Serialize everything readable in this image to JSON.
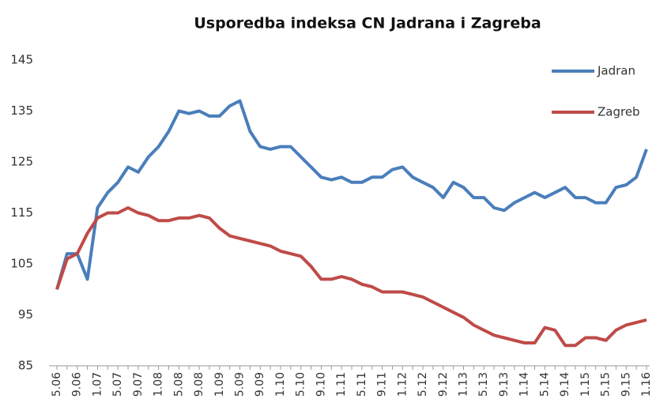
{
  "chart_data": {
    "type": "line",
    "title": "Usporedba indeksa CN Jadrana i Zagreba",
    "categories": [
      "5.06",
      null,
      "9.06",
      null,
      "1.07",
      null,
      "5.07",
      null,
      "9.07",
      null,
      "1.08",
      null,
      "5.08",
      null,
      "9.08",
      null,
      "1.09",
      null,
      "5.09",
      null,
      "9.09",
      null,
      "1.10",
      null,
      "5.10",
      null,
      "9.10",
      null,
      "1.11",
      null,
      "5.11",
      null,
      "9.11",
      null,
      "1.12",
      null,
      "5.12",
      null,
      "9.12",
      null,
      "1.13",
      null,
      "5.13",
      null,
      "9.13",
      null,
      "1.14",
      null,
      "5.14",
      null,
      "9.14",
      null,
      "1.15",
      null,
      "5.15",
      null,
      "9.15",
      null,
      "1.16"
    ],
    "series": [
      {
        "name": "Jadran",
        "color": "#4a7ebb",
        "values": [
          100,
          107,
          107,
          102,
          116,
          119,
          121,
          124,
          123,
          126,
          128,
          131,
          135,
          134.5,
          135,
          134,
          134,
          136,
          137,
          131,
          128,
          127.5,
          128,
          128,
          126,
          124,
          122,
          121.5,
          122,
          121,
          121,
          122,
          122,
          123.5,
          124,
          122,
          121,
          120,
          118,
          121,
          120,
          118,
          118,
          116,
          115.5,
          117,
          118,
          119,
          118,
          119,
          120,
          118,
          118,
          117,
          117,
          120,
          120.5,
          122,
          127.5
        ]
      },
      {
        "name": "Zagreb",
        "color": "#be4b48",
        "values": [
          100,
          106,
          107,
          111,
          114,
          115,
          115,
          116,
          115,
          114.5,
          113.5,
          113.5,
          114,
          114,
          114.5,
          114,
          112,
          110.5,
          110,
          109.5,
          109,
          108.5,
          107.5,
          107,
          106.5,
          104.5,
          102,
          102,
          102.5,
          102,
          101,
          100.5,
          99.5,
          99.5,
          99.5,
          99,
          98.5,
          97.5,
          96.5,
          95.5,
          94.5,
          93,
          92,
          91,
          90.5,
          90,
          89.5,
          89.5,
          92.5,
          92,
          89,
          89,
          90.5,
          90.5,
          90,
          92,
          93,
          93.5,
          94
        ]
      }
    ],
    "ylim": [
      85,
      145
    ],
    "yticks": [
      85,
      95,
      105,
      115,
      125,
      135,
      145
    ],
    "grid": false,
    "legend": "right"
  }
}
